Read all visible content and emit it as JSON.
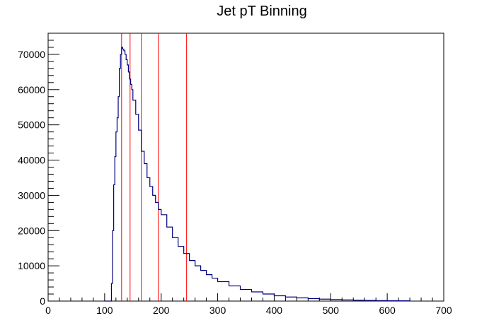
{
  "chart_data": {
    "type": "line",
    "style": "step-histogram",
    "title": "Jet pT Binning",
    "xlabel": "",
    "ylabel": "",
    "xlim": [
      0,
      700
    ],
    "ylim": [
      0,
      76000
    ],
    "x_ticks": [
      "0",
      "100",
      "200",
      "300",
      "400",
      "500",
      "600",
      "700"
    ],
    "y_ticks": [
      "0",
      "10000",
      "20000",
      "30000",
      "40000",
      "50000",
      "60000",
      "70000"
    ],
    "x_tick_values": [
      0,
      100,
      200,
      300,
      400,
      500,
      600,
      700
    ],
    "y_tick_values": [
      0,
      10000,
      20000,
      30000,
      40000,
      50000,
      60000,
      70000
    ],
    "grid": false,
    "legend": "none",
    "series": [
      {
        "color": "#000080",
        "x": [
          100,
          110,
          112,
          114,
          116,
          118,
          120,
          122,
          124,
          126,
          128,
          130,
          132,
          134,
          136,
          138,
          140,
          142,
          144,
          146,
          148,
          150,
          155,
          160,
          165,
          170,
          175,
          180,
          185,
          190,
          195,
          200,
          210,
          220,
          230,
          240,
          250,
          260,
          270,
          280,
          290,
          300,
          320,
          340,
          360,
          380,
          400,
          420,
          440,
          460,
          480,
          500,
          520,
          540,
          560,
          580,
          600,
          620,
          640
        ],
        "y": [
          0,
          0,
          5000,
          20000,
          33000,
          41000,
          48000,
          52000,
          58000,
          66000,
          70000,
          72000,
          71500,
          71000,
          70000,
          68500,
          67000,
          65000,
          63000,
          61500,
          60000,
          57000,
          53000,
          48500,
          42500,
          39000,
          35000,
          32500,
          30000,
          28000,
          26000,
          24500,
          21000,
          18000,
          15500,
          13500,
          11500,
          10000,
          8700,
          7500,
          6500,
          5500,
          4300,
          3300,
          2600,
          2000,
          1500,
          1150,
          900,
          700,
          550,
          420,
          320,
          250,
          190,
          140,
          110,
          80,
          0
        ]
      }
    ],
    "markers": {
      "color": "#ff0000",
      "x": [
        130,
        145,
        165,
        195,
        245
      ]
    }
  }
}
